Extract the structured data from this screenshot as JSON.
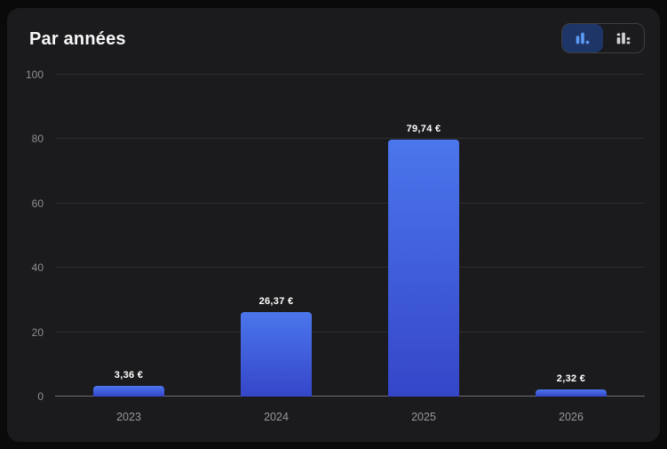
{
  "header": {
    "title": "Par années"
  },
  "toolbar": {
    "chart_type_toggle": {
      "options": [
        {
          "label": "bar chart view",
          "icon": "bar-chart-icon",
          "active": true
        },
        {
          "label": "stacked bar chart view",
          "icon": "stacked-bar-chart-icon",
          "active": false
        }
      ]
    }
  },
  "colors": {
    "page_bg": "#0a0a0b",
    "card_bg": "#1b1b1d",
    "bar_gradient_top": "#4b76ec",
    "bar_gradient_bottom": "#3546c9",
    "active_toggle_bg": "#1e3567",
    "active_toggle_icon": "#5d9af3",
    "inactive_toggle_icon": "#d2d2d4",
    "gridline": "#2e2e32",
    "baseline": "#6f6f73",
    "axis_label": "#8f8f93",
    "value_label": "#ffffff"
  },
  "chart_data": {
    "type": "bar",
    "title": "Par années",
    "categories": [
      "2023",
      "2024",
      "2025",
      "2026"
    ],
    "values": [
      3.36,
      26.37,
      79.74,
      2.32
    ],
    "value_labels": [
      "3,36 €",
      "26,37 €",
      "79,74 €",
      "2,32 €"
    ],
    "xlabel": "",
    "ylabel": "",
    "ylim": [
      0,
      100
    ],
    "yticks": [
      0,
      20,
      40,
      60,
      80,
      100
    ],
    "grid": true,
    "legend": false,
    "currency": "EUR"
  }
}
